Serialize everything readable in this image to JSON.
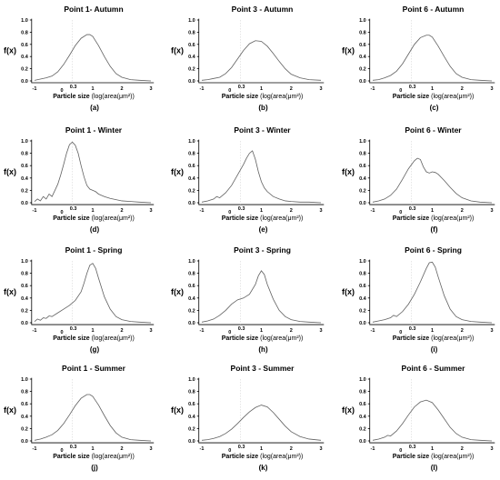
{
  "figure": {
    "y_axis_label": "f(x)",
    "x_axis_label_main": "Particle size",
    "x_axis_label_unit": "(log(area(μm²))",
    "curve_color": "#606060",
    "reference_line_color": "#cccccc"
  },
  "chart_data": [
    {
      "type": "line",
      "title": "Point 1- Autumn",
      "panel_label": "(a)",
      "xlim": [
        -1.1,
        3.1
      ],
      "ylim": [
        0,
        1.0
      ],
      "x_ticks": [
        "-1",
        "0",
        "0.3",
        "1",
        "2",
        "3"
      ],
      "y_ticks": [
        "0.0",
        "0.2",
        "0.4",
        "0.6",
        "0.8",
        "1.0"
      ],
      "reference_x": 0.3,
      "series": [
        {
          "x": [
            -1.0,
            -0.8,
            -0.6,
            -0.4,
            -0.2,
            0.0,
            0.2,
            0.4,
            0.6,
            0.8,
            0.9,
            1.0,
            1.2,
            1.4,
            1.6,
            1.8,
            2.0,
            2.3,
            2.6,
            3.0
          ],
          "values": [
            0.01,
            0.03,
            0.05,
            0.08,
            0.15,
            0.27,
            0.42,
            0.58,
            0.7,
            0.76,
            0.76,
            0.73,
            0.58,
            0.4,
            0.24,
            0.12,
            0.06,
            0.02,
            0.01,
            0.0
          ]
        }
      ]
    },
    {
      "type": "line",
      "title": "Point 3 - Autumn",
      "panel_label": "(b)",
      "xlim": [
        -1.1,
        3.1
      ],
      "ylim": [
        0,
        1.0
      ],
      "x_ticks": [
        "-1",
        "0",
        "0.3",
        "1",
        "2",
        "3"
      ],
      "y_ticks": [
        "0.0",
        "0.2",
        "0.4",
        "0.6",
        "0.8",
        "1.0"
      ],
      "reference_x": 0.3,
      "series": [
        {
          "x": [
            -1.0,
            -0.8,
            -0.6,
            -0.4,
            -0.2,
            0.0,
            0.2,
            0.4,
            0.6,
            0.8,
            1.0,
            1.2,
            1.4,
            1.6,
            1.8,
            2.0,
            2.3,
            2.6,
            3.0
          ],
          "values": [
            0.01,
            0.02,
            0.04,
            0.06,
            0.12,
            0.22,
            0.36,
            0.5,
            0.61,
            0.66,
            0.65,
            0.57,
            0.45,
            0.32,
            0.2,
            0.11,
            0.05,
            0.02,
            0.01
          ]
        }
      ]
    },
    {
      "type": "line",
      "title": "Point 6 - Autumn",
      "panel_label": "(c)",
      "xlim": [
        -1.1,
        3.1
      ],
      "ylim": [
        0,
        1.0
      ],
      "x_ticks": [
        "-1",
        "0",
        "0.3",
        "1",
        "2",
        "3"
      ],
      "y_ticks": [
        "0.0",
        "0.2",
        "0.4",
        "0.6",
        "0.8",
        "1.0"
      ],
      "reference_x": 0.3,
      "series": [
        {
          "x": [
            -1.0,
            -0.8,
            -0.6,
            -0.4,
            -0.2,
            0.0,
            0.2,
            0.4,
            0.6,
            0.8,
            0.9,
            1.0,
            1.2,
            1.4,
            1.6,
            1.8,
            2.0,
            2.3,
            2.6,
            3.0
          ],
          "values": [
            0.01,
            0.02,
            0.05,
            0.09,
            0.16,
            0.28,
            0.44,
            0.6,
            0.71,
            0.75,
            0.75,
            0.72,
            0.57,
            0.4,
            0.24,
            0.12,
            0.06,
            0.02,
            0.01,
            0.0
          ]
        }
      ]
    },
    {
      "type": "line",
      "title": "Point 1 - Winter",
      "panel_label": "(d)",
      "xlim": [
        -1.1,
        3.1
      ],
      "ylim": [
        0,
        1.0
      ],
      "x_ticks": [
        "-1",
        "0",
        "0.3",
        "1",
        "2",
        "3"
      ],
      "y_ticks": [
        "0.0",
        "0.2",
        "0.4",
        "0.6",
        "0.8",
        "1.0"
      ],
      "reference_x": 0.3,
      "series": [
        {
          "x": [
            -1.0,
            -0.9,
            -0.8,
            -0.7,
            -0.6,
            -0.5,
            -0.4,
            -0.3,
            -0.2,
            -0.1,
            0.0,
            0.1,
            0.2,
            0.3,
            0.4,
            0.5,
            0.6,
            0.7,
            0.8,
            0.9,
            1.0,
            1.1,
            1.2,
            1.4,
            1.6,
            1.8,
            2.0,
            2.3,
            2.6,
            3.0
          ],
          "values": [
            0.02,
            0.06,
            0.03,
            0.1,
            0.06,
            0.14,
            0.1,
            0.2,
            0.3,
            0.45,
            0.62,
            0.8,
            0.94,
            0.98,
            0.93,
            0.8,
            0.6,
            0.42,
            0.28,
            0.22,
            0.2,
            0.18,
            0.14,
            0.1,
            0.07,
            0.05,
            0.03,
            0.02,
            0.01,
            0.0
          ]
        }
      ]
    },
    {
      "type": "line",
      "title": "Point 3 - Winter",
      "panel_label": "(e)",
      "xlim": [
        -1.1,
        3.1
      ],
      "ylim": [
        0,
        1.0
      ],
      "x_ticks": [
        "-1",
        "0",
        "0.3",
        "1",
        "2",
        "3"
      ],
      "y_ticks": [
        "0.0",
        "0.2",
        "0.4",
        "0.6",
        "0.8",
        "1.0"
      ],
      "reference_x": 0.3,
      "series": [
        {
          "x": [
            -1.0,
            -0.8,
            -0.6,
            -0.5,
            -0.4,
            -0.2,
            0.0,
            0.2,
            0.4,
            0.5,
            0.6,
            0.7,
            0.8,
            0.9,
            1.0,
            1.1,
            1.2,
            1.4,
            1.6,
            1.8,
            2.0,
            2.3,
            2.6,
            3.0
          ],
          "values": [
            0.01,
            0.03,
            0.06,
            0.1,
            0.08,
            0.16,
            0.28,
            0.45,
            0.62,
            0.72,
            0.8,
            0.84,
            0.7,
            0.5,
            0.34,
            0.24,
            0.18,
            0.1,
            0.06,
            0.03,
            0.02,
            0.01,
            0.01,
            0.0
          ]
        }
      ]
    },
    {
      "type": "line",
      "title": "Point 6 - Winter",
      "panel_label": "(f)",
      "xlim": [
        -1.1,
        3.1
      ],
      "ylim": [
        0,
        1.0
      ],
      "x_ticks": [
        "-1",
        "0",
        "0.3",
        "1",
        "2",
        "3"
      ],
      "y_ticks": [
        "0.0",
        "0.2",
        "0.4",
        "0.6",
        "0.8",
        "1.0"
      ],
      "reference_x": 0.3,
      "series": [
        {
          "x": [
            -1.0,
            -0.8,
            -0.6,
            -0.4,
            -0.2,
            0.0,
            0.2,
            0.4,
            0.5,
            0.6,
            0.7,
            0.8,
            0.9,
            1.0,
            1.1,
            1.2,
            1.4,
            1.6,
            1.8,
            2.0,
            2.3,
            2.6,
            3.0
          ],
          "values": [
            0.01,
            0.03,
            0.06,
            0.12,
            0.22,
            0.38,
            0.55,
            0.68,
            0.72,
            0.7,
            0.58,
            0.5,
            0.48,
            0.5,
            0.49,
            0.46,
            0.36,
            0.25,
            0.15,
            0.08,
            0.03,
            0.01,
            0.0
          ]
        }
      ]
    },
    {
      "type": "line",
      "title": "Point 1 - Spring",
      "panel_label": "(g)",
      "xlim": [
        -1.1,
        3.1
      ],
      "ylim": [
        0,
        1.0
      ],
      "x_ticks": [
        "-1",
        "0",
        "0.3",
        "1",
        "2",
        "3"
      ],
      "y_ticks": [
        "0.0",
        "0.2",
        "0.4",
        "0.6",
        "0.8",
        "1.0"
      ],
      "reference_x": 0.3,
      "series": [
        {
          "x": [
            -1.0,
            -0.9,
            -0.8,
            -0.7,
            -0.6,
            -0.5,
            -0.4,
            -0.2,
            0.0,
            0.2,
            0.4,
            0.6,
            0.7,
            0.8,
            0.9,
            1.0,
            1.1,
            1.2,
            1.4,
            1.6,
            1.8,
            2.0,
            2.3,
            2.6,
            3.0
          ],
          "values": [
            0.02,
            0.06,
            0.04,
            0.08,
            0.07,
            0.11,
            0.1,
            0.16,
            0.22,
            0.28,
            0.36,
            0.5,
            0.64,
            0.8,
            0.93,
            0.96,
            0.88,
            0.72,
            0.42,
            0.22,
            0.1,
            0.05,
            0.02,
            0.01,
            0.0
          ]
        }
      ]
    },
    {
      "type": "line",
      "title": "Point 3  - Spring",
      "panel_label": "(h)",
      "xlim": [
        -1.1,
        3.1
      ],
      "ylim": [
        0,
        1.0
      ],
      "x_ticks": [
        "-1",
        "0",
        "0.3",
        "1",
        "2",
        "3"
      ],
      "y_ticks": [
        "0.0",
        "0.2",
        "0.4",
        "0.6",
        "0.8",
        "1.0"
      ],
      "reference_x": 0.3,
      "series": [
        {
          "x": [
            -1.0,
            -0.8,
            -0.6,
            -0.4,
            -0.2,
            0.0,
            0.2,
            0.4,
            0.6,
            0.8,
            0.9,
            1.0,
            1.1,
            1.2,
            1.4,
            1.6,
            1.8,
            2.0,
            2.3,
            2.6,
            3.0
          ],
          "values": [
            0.01,
            0.03,
            0.06,
            0.12,
            0.2,
            0.3,
            0.37,
            0.4,
            0.46,
            0.62,
            0.76,
            0.84,
            0.78,
            0.62,
            0.38,
            0.2,
            0.1,
            0.05,
            0.02,
            0.01,
            0.0
          ]
        }
      ]
    },
    {
      "type": "line",
      "title": "Point 6  - Spring",
      "panel_label": "(i)",
      "xlim": [
        -1.1,
        3.1
      ],
      "ylim": [
        0,
        1.0
      ],
      "x_ticks": [
        "-1",
        "0",
        "0.3",
        "1",
        "2",
        "3"
      ],
      "y_ticks": [
        "0.0",
        "0.2",
        "0.4",
        "0.6",
        "0.8",
        "1.0"
      ],
      "reference_x": 0.3,
      "series": [
        {
          "x": [
            -1.0,
            -0.8,
            -0.6,
            -0.4,
            -0.3,
            -0.2,
            0.0,
            0.2,
            0.4,
            0.6,
            0.8,
            0.9,
            1.0,
            1.1,
            1.2,
            1.4,
            1.6,
            1.8,
            2.0,
            2.3,
            2.6,
            3.0
          ],
          "values": [
            0.01,
            0.03,
            0.05,
            0.08,
            0.12,
            0.1,
            0.18,
            0.3,
            0.46,
            0.66,
            0.88,
            0.97,
            0.98,
            0.9,
            0.74,
            0.44,
            0.22,
            0.1,
            0.05,
            0.02,
            0.01,
            0.0
          ]
        }
      ]
    },
    {
      "type": "line",
      "title": "Point 1 - Summer",
      "panel_label": "(j)",
      "xlim": [
        -1.1,
        3.1
      ],
      "ylim": [
        0,
        1.0
      ],
      "x_ticks": [
        "-1",
        "0",
        "0.3",
        "1",
        "2",
        "3"
      ],
      "y_ticks": [
        "0.0",
        "0.2",
        "0.4",
        "0.6",
        "0.8",
        "1.0"
      ],
      "reference_x": 0.3,
      "series": [
        {
          "x": [
            -1.0,
            -0.8,
            -0.6,
            -0.4,
            -0.2,
            0.0,
            0.2,
            0.4,
            0.6,
            0.8,
            0.9,
            1.0,
            1.2,
            1.4,
            1.6,
            1.8,
            2.0,
            2.3,
            2.6,
            3.0
          ],
          "values": [
            0.01,
            0.03,
            0.06,
            0.1,
            0.17,
            0.28,
            0.42,
            0.57,
            0.69,
            0.75,
            0.75,
            0.72,
            0.58,
            0.41,
            0.25,
            0.13,
            0.06,
            0.02,
            0.01,
            0.0
          ]
        }
      ]
    },
    {
      "type": "line",
      "title": "Point 3 - Summer",
      "panel_label": "(k)",
      "xlim": [
        -1.1,
        3.1
      ],
      "ylim": [
        0,
        1.0
      ],
      "x_ticks": [
        "-1",
        "0",
        "0.3",
        "1",
        "2",
        "3"
      ],
      "y_ticks": [
        "0.0",
        "0.2",
        "0.4",
        "0.6",
        "0.8",
        "1.0"
      ],
      "reference_x": 0.3,
      "series": [
        {
          "x": [
            -1.0,
            -0.8,
            -0.6,
            -0.4,
            -0.2,
            0.0,
            0.2,
            0.4,
            0.6,
            0.8,
            1.0,
            1.2,
            1.4,
            1.6,
            1.8,
            2.0,
            2.3,
            2.6,
            3.0
          ],
          "values": [
            0.01,
            0.02,
            0.04,
            0.07,
            0.12,
            0.19,
            0.28,
            0.38,
            0.47,
            0.54,
            0.58,
            0.55,
            0.46,
            0.35,
            0.24,
            0.15,
            0.07,
            0.03,
            0.01
          ]
        }
      ]
    },
    {
      "type": "line",
      "title": "Point 6 - Summer",
      "panel_label": "(l)",
      "xlim": [
        -1.1,
        3.1
      ],
      "ylim": [
        0,
        1.0
      ],
      "x_ticks": [
        "-1",
        "0",
        "0.3",
        "1",
        "2",
        "3"
      ],
      "y_ticks": [
        "0.0",
        "0.2",
        "0.4",
        "0.6",
        "0.8",
        "1.0"
      ],
      "reference_x": 0.3,
      "series": [
        {
          "x": [
            -1.0,
            -0.8,
            -0.6,
            -0.5,
            -0.4,
            -0.2,
            0.0,
            0.2,
            0.4,
            0.6,
            0.8,
            1.0,
            1.2,
            1.4,
            1.6,
            1.8,
            2.0,
            2.3,
            2.6,
            3.0
          ],
          "values": [
            0.01,
            0.03,
            0.06,
            0.09,
            0.08,
            0.16,
            0.28,
            0.42,
            0.55,
            0.63,
            0.66,
            0.62,
            0.5,
            0.36,
            0.22,
            0.12,
            0.06,
            0.02,
            0.01,
            0.0
          ]
        }
      ]
    }
  ]
}
